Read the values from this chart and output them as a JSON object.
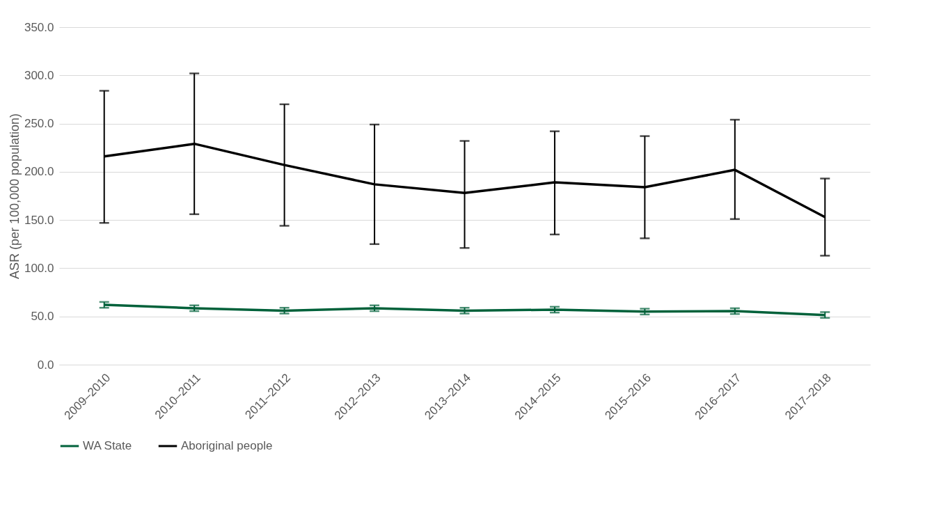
{
  "chart_data": {
    "type": "line",
    "ylabel": "ASR (per 100,000 population)",
    "categories": [
      "2009–2010",
      "2010–2011",
      "2011–2012",
      "2012–2013",
      "2013–2014",
      "2014–2015",
      "2015–2016",
      "2016–2017",
      "2017–2018"
    ],
    "series": [
      {
        "name": "WA State",
        "color": "#00613a",
        "values": [
          62,
          58.5,
          56,
          58.5,
          56,
          57,
          55,
          55.5,
          51.5
        ],
        "errors": [
          3,
          3,
          3,
          3,
          3,
          3,
          3,
          3,
          3
        ]
      },
      {
        "name": "Aboriginal people",
        "color": "#000000",
        "values": [
          216,
          229,
          207,
          187,
          178,
          189,
          184,
          202,
          153
        ],
        "errors": [
          [
            147,
            284
          ],
          [
            156,
            302
          ],
          [
            144,
            270
          ],
          [
            125,
            249
          ],
          [
            121,
            232
          ],
          [
            135,
            242
          ],
          [
            131,
            237
          ],
          [
            151,
            254
          ],
          [
            113,
            193
          ]
        ]
      }
    ],
    "ylim": [
      0,
      350
    ],
    "yticks": [
      {
        "value": 0,
        "label": "0.0"
      },
      {
        "value": 50,
        "label": "50.0"
      },
      {
        "value": 100,
        "label": "100.0"
      },
      {
        "value": 150,
        "label": "150.0"
      },
      {
        "value": 200,
        "label": "200.0"
      },
      {
        "value": 250,
        "label": "250.0"
      },
      {
        "value": 300,
        "label": "300.0"
      },
      {
        "value": 350,
        "label": "350.0"
      }
    ],
    "grid": "y",
    "legend": "bottom",
    "marker": "none",
    "line_style": "solid"
  }
}
